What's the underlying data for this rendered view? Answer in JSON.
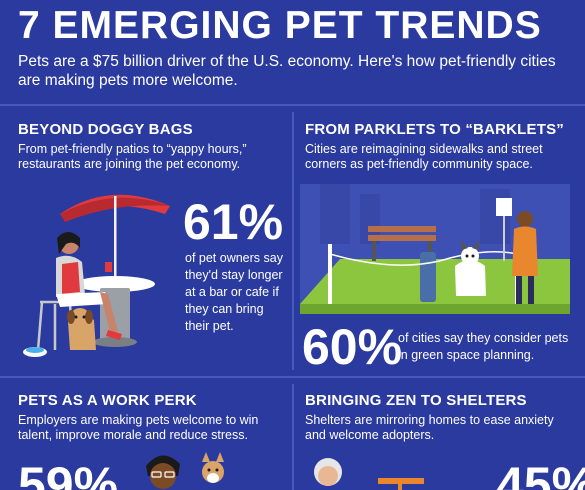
{
  "header": {
    "title": "7 EMERGING PET TRENDS",
    "subtitle": "Pets are a $75 billion driver of the U.S. economy. Here's how pet-friendly cities are making pets more welcome."
  },
  "sections": [
    {
      "title": "BEYOND DOGGY BAGS",
      "desc": "From pet-friendly patios to “yappy hours,” restaurants are joining the pet economy.",
      "stat": "61%",
      "stat_text": "of pet owners say they'd stay longer at a bar or cafe if they can bring their pet."
    },
    {
      "title": "FROM PARKLETS TO “BARKLETS”",
      "desc": "Cities are reimagining sidewalks and street corners as pet-friendly community space.",
      "stat": "60%",
      "stat_text": "of cities say they consider pets in green space planning."
    },
    {
      "title": "PETS AS A WORK PERK",
      "desc": "Employers are making pets welcome to win talent, improve morale and reduce stress.",
      "stat": "59%"
    },
    {
      "title": "BRINGING ZEN TO SHELTERS",
      "desc": "Shelters are mirroring homes to ease anxiety and welcome adopters.",
      "stat": "45%"
    }
  ],
  "colors": {
    "background": "#2b3a9e",
    "umbrella": "#e03a3e",
    "grass": "#8cc63f",
    "divider": "#4a59b8"
  }
}
